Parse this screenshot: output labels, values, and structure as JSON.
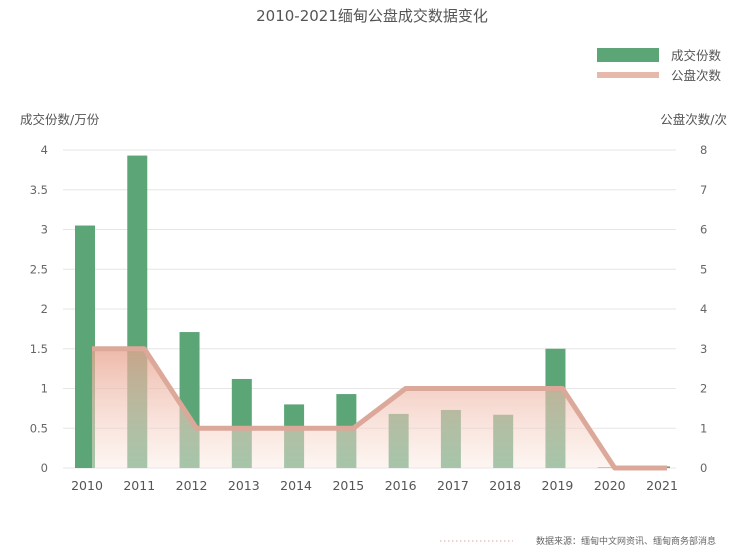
{
  "chart_data": {
    "type": "bar",
    "title": "2010-2021缅甸公盘成交数据变化",
    "categories": [
      "2010",
      "2011",
      "2012",
      "2013",
      "2014",
      "2015",
      "2016",
      "2017",
      "2018",
      "2019",
      "2020",
      "2021"
    ],
    "series": [
      {
        "name": "成交份数",
        "type": "bar",
        "axis": "left",
        "color": "#5ba577",
        "values": [
          3.05,
          3.93,
          1.71,
          1.12,
          0.8,
          0.93,
          0.68,
          0.73,
          0.67,
          1.5,
          0.01,
          0.02
        ]
      },
      {
        "name": "公盘次数",
        "type": "area-line",
        "axis": "right",
        "color": "#dca89a",
        "values": [
          3,
          3,
          1,
          1,
          1,
          1,
          2,
          2,
          2,
          2,
          0,
          0
        ]
      }
    ],
    "ylabel_left": "成交份数/万份",
    "ylabel_right": "公盘次数/次",
    "ylim_left": [
      0,
      4
    ],
    "yticks_left": [
      "0",
      "0.5",
      "1",
      "1.5",
      "2",
      "2.5",
      "3",
      "3.5",
      "4"
    ],
    "ylim_right": [
      0,
      8
    ],
    "yticks_right": [
      "0",
      "1",
      "2",
      "3",
      "4",
      "5",
      "6",
      "7",
      "8"
    ],
    "grid": true,
    "legend_position": "top-right",
    "source": "数据来源：缅甸中文网资讯、缅甸商务部消息"
  }
}
